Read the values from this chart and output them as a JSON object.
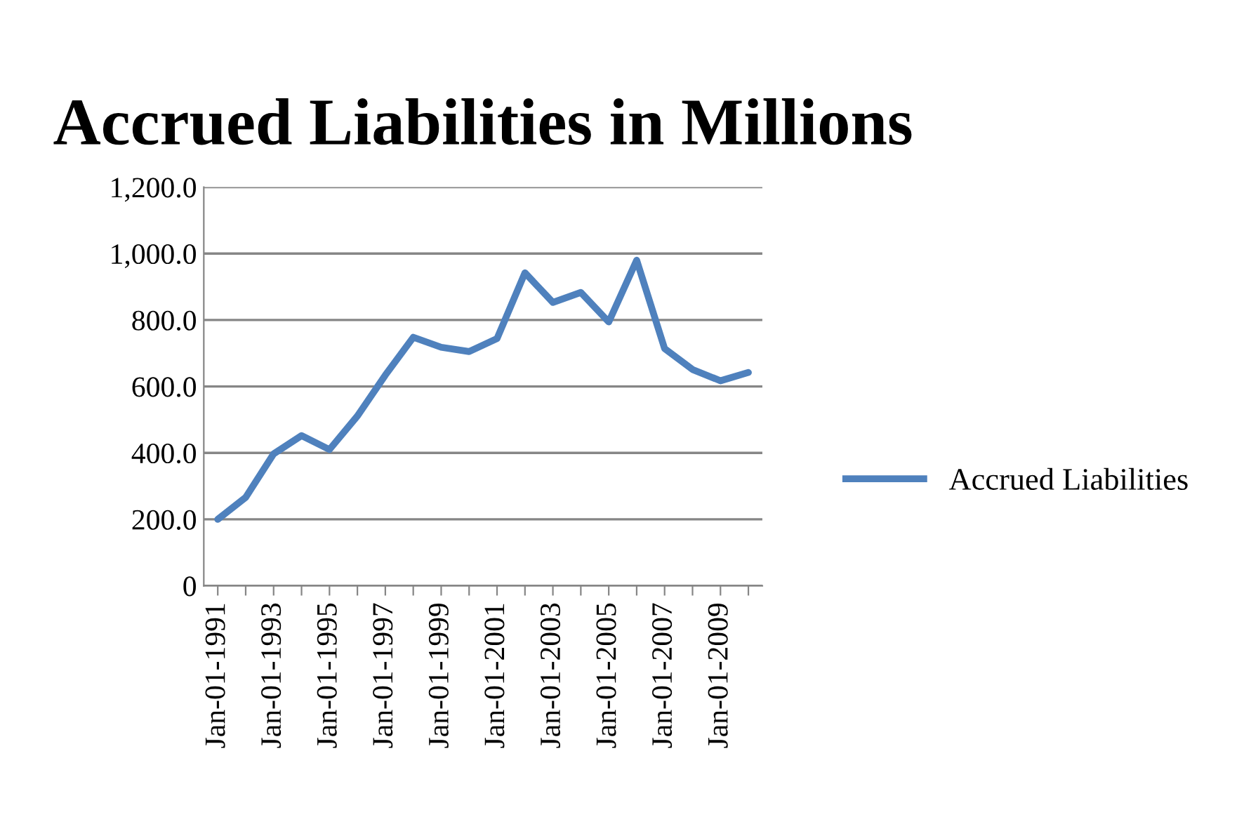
{
  "chart_data": {
    "type": "line",
    "title": "Accrued Liabilities in Millions",
    "categories": [
      "Jan-01-1991",
      null,
      "Jan-01-1993",
      null,
      "Jan-01-1995",
      null,
      "Jan-01-1997",
      null,
      "Jan-01-1999",
      null,
      "Jan-01-2001",
      null,
      "Jan-01-2003",
      null,
      "Jan-01-2005",
      null,
      "Jan-01-2007",
      null,
      "Jan-01-2009",
      null
    ],
    "series": [
      {
        "name": "Accrued Liabilities",
        "color": "#4f81bd",
        "values": [
          200,
          266,
          397,
          452,
          410,
          511,
          634,
          748,
          718,
          705,
          744,
          942,
          853,
          883,
          794,
          980,
          714,
          651,
          617,
          642
        ]
      }
    ],
    "ylim": [
      0,
      1200
    ],
    "yticks": [
      {
        "value": 0,
        "label": "0"
      },
      {
        "value": 200,
        "label": "200.0"
      },
      {
        "value": 400,
        "label": "400.0"
      },
      {
        "value": 600,
        "label": "600.0"
      },
      {
        "value": 800,
        "label": "800.0"
      },
      {
        "value": 1000,
        "label": "1,000.0"
      },
      {
        "value": 1200,
        "label": "1,200.0"
      }
    ],
    "grid": "y",
    "legend": "right",
    "marker": "none",
    "line_style": "solid"
  }
}
